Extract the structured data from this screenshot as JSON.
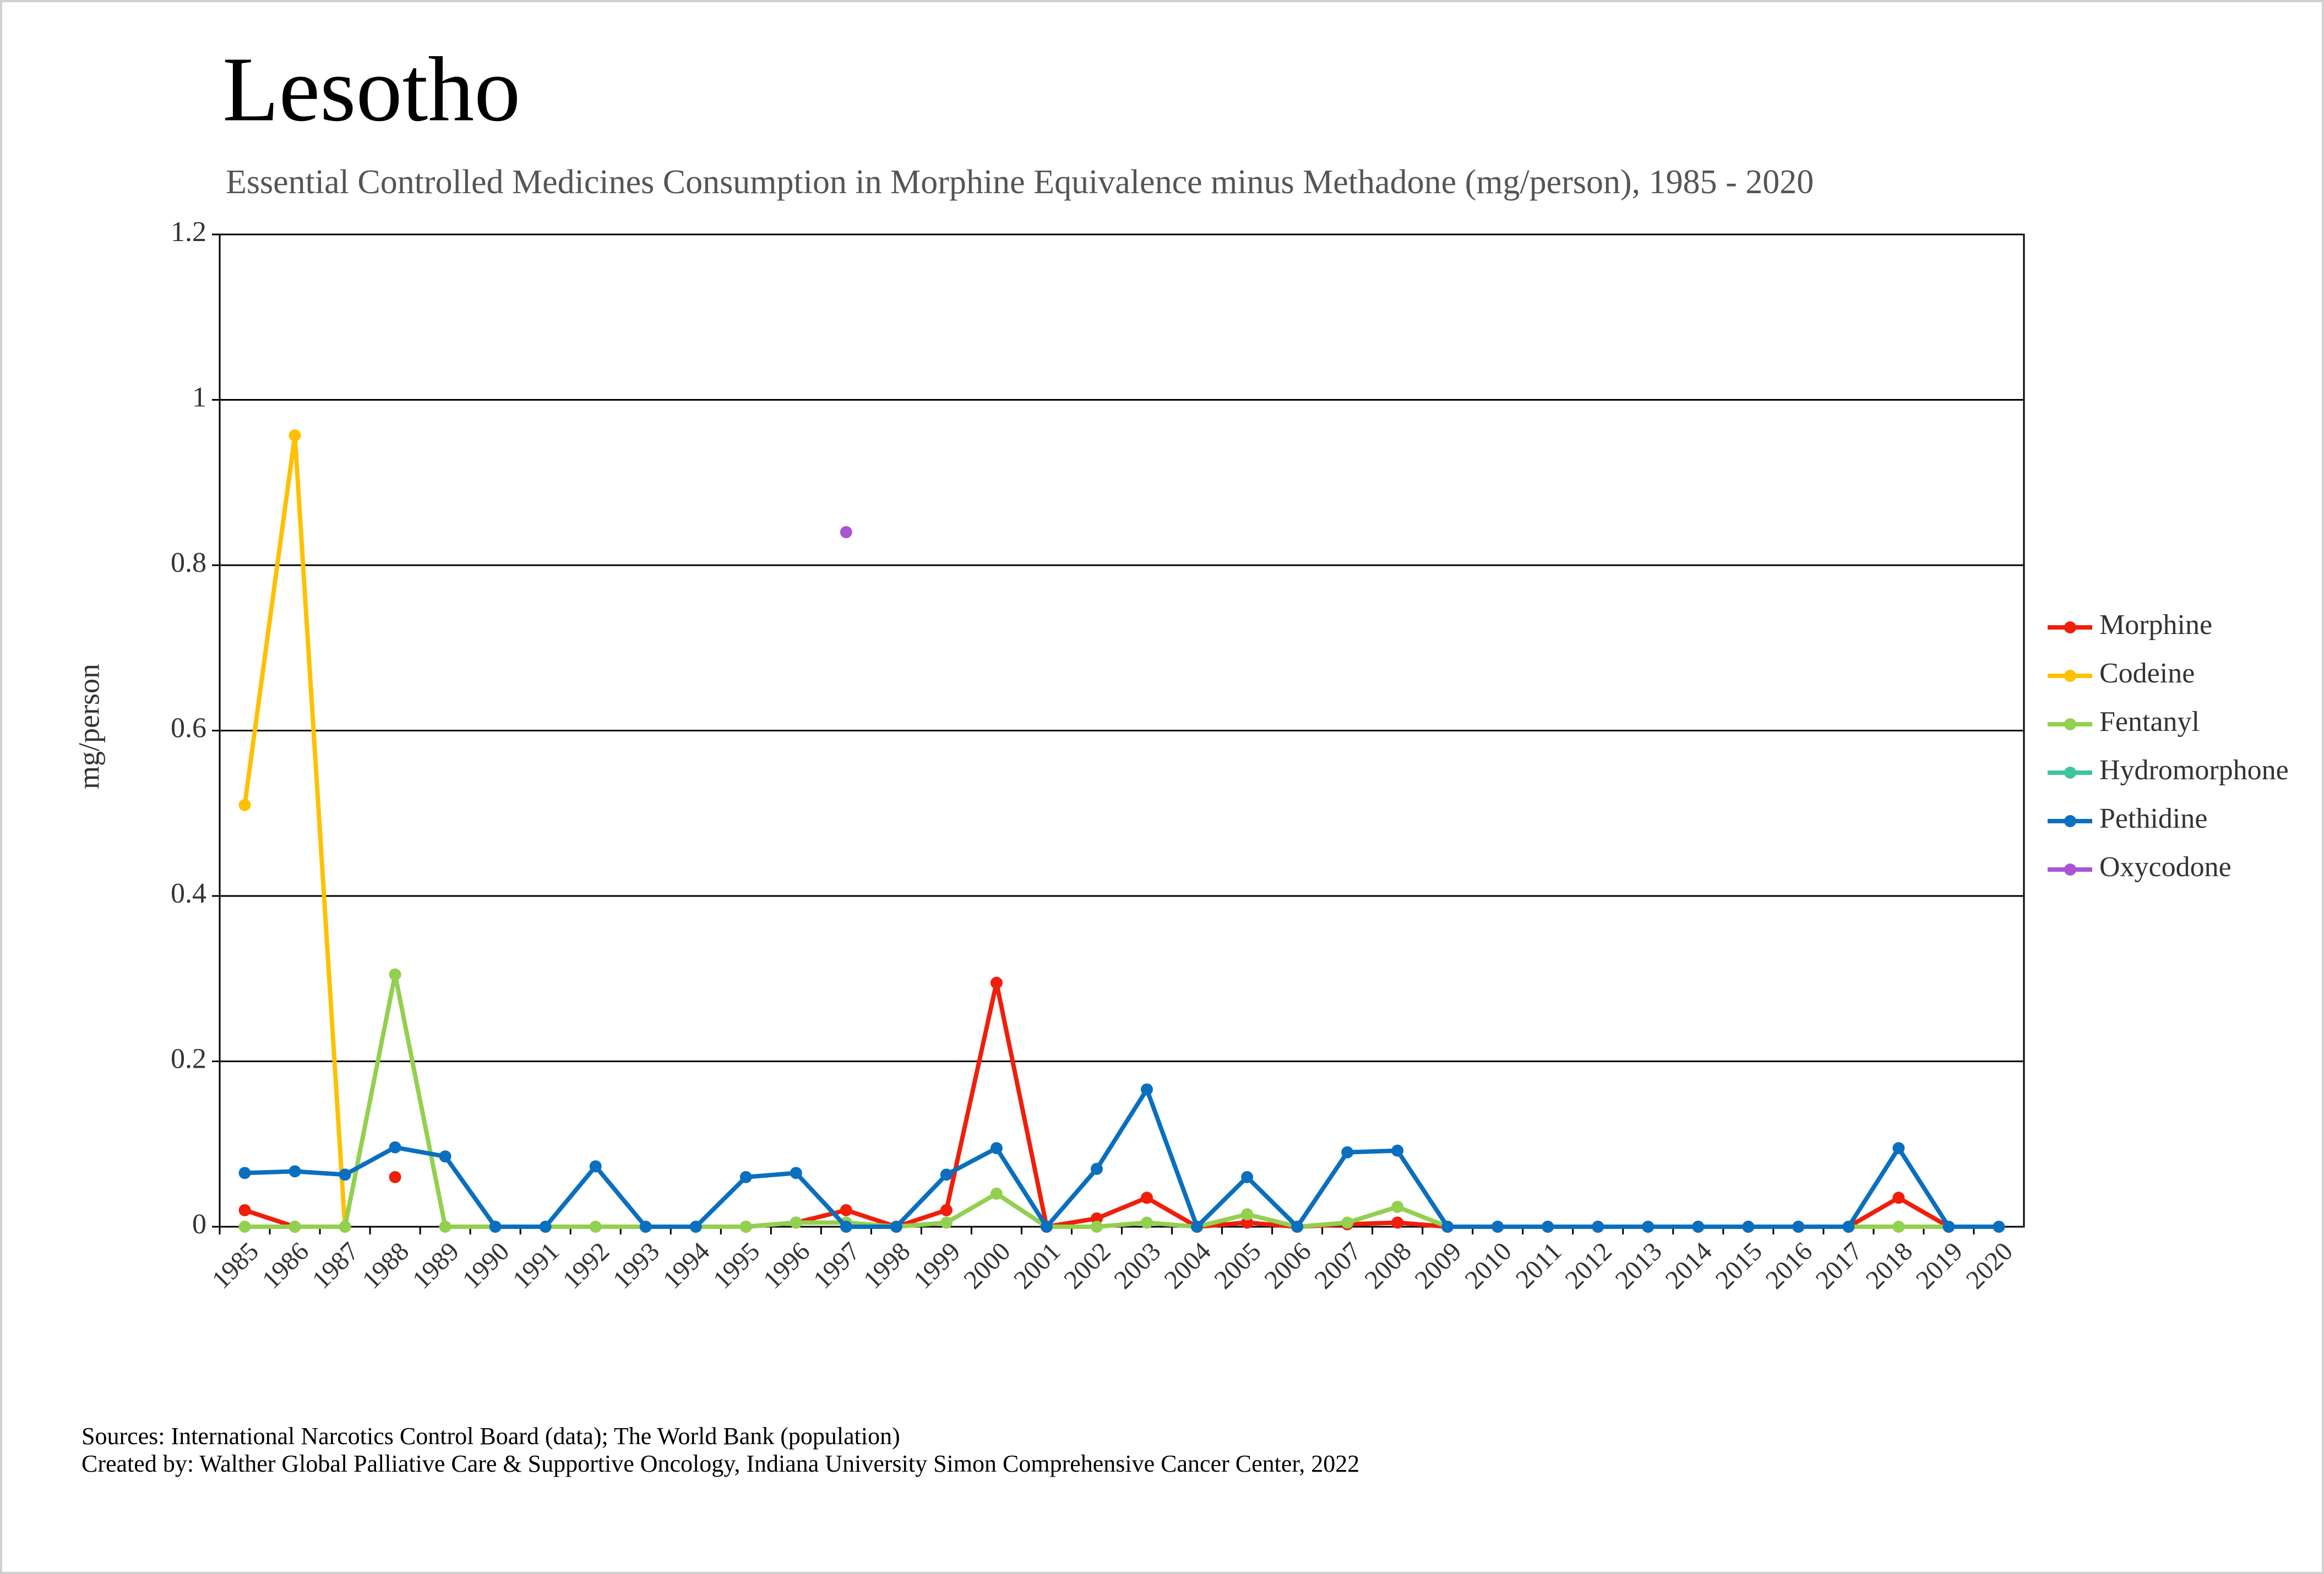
{
  "chart_data": {
    "type": "line",
    "title": "Lesotho",
    "subtitle": "Essential Controlled Medicines Consumption in Morphine Equivalence minus Methadone (mg/person), 1985 - 2020",
    "y_label": "mg/person",
    "categories": [
      "1985",
      "1986",
      "1987",
      "1988",
      "1989",
      "1990",
      "1991",
      "1992",
      "1993",
      "1994",
      "1995",
      "1996",
      "1997",
      "1998",
      "1999",
      "2000",
      "2001",
      "2002",
      "2003",
      "2004",
      "2005",
      "2006",
      "2007",
      "2008",
      "2009",
      "2010",
      "2011",
      "2012",
      "2013",
      "2014",
      "2015",
      "2016",
      "2017",
      "2018",
      "2019",
      "2020"
    ],
    "series": [
      {
        "name": "Morphine",
        "color": "#f01e0a",
        "values": [
          0.02,
          0,
          null,
          0.06,
          null,
          null,
          null,
          null,
          null,
          null,
          0,
          0.005,
          0.02,
          0,
          0.02,
          0.295,
          0,
          0.01,
          0.035,
          0,
          0.005,
          0,
          0.003,
          0.005,
          0,
          0,
          0,
          0,
          0,
          0,
          0,
          0,
          0,
          0.035,
          0,
          null
        ]
      },
      {
        "name": "Codeine",
        "color": "#ffc000",
        "values": [
          0.51,
          0.957,
          0,
          null,
          null,
          null,
          null,
          null,
          null,
          null,
          null,
          null,
          null,
          null,
          null,
          null,
          null,
          null,
          null,
          null,
          null,
          null,
          null,
          null,
          null,
          null,
          null,
          null,
          null,
          null,
          null,
          null,
          null,
          null,
          null,
          null
        ]
      },
      {
        "name": "Fentanyl",
        "color": "#92d050",
        "values": [
          0,
          0,
          0,
          0.305,
          0,
          0,
          0,
          0,
          0,
          0,
          0,
          0.005,
          0.005,
          0,
          0.005,
          0.04,
          0,
          0,
          0.005,
          0,
          0.015,
          0,
          0.005,
          0.024,
          0,
          null,
          null,
          null,
          null,
          null,
          null,
          null,
          0,
          0,
          0,
          null
        ]
      },
      {
        "name": "Hydromorphone",
        "color": "#3cc5a0",
        "values": [
          null,
          null,
          null,
          null,
          null,
          null,
          null,
          null,
          null,
          null,
          null,
          null,
          null,
          null,
          null,
          null,
          null,
          null,
          null,
          null,
          null,
          null,
          null,
          null,
          null,
          null,
          null,
          null,
          null,
          null,
          null,
          null,
          null,
          null,
          null,
          null
        ]
      },
      {
        "name": "Pethidine",
        "color": "#0a6fbf",
        "values": [
          0.065,
          0.067,
          0.063,
          0.096,
          0.085,
          0,
          0,
          0.073,
          0,
          0,
          0.06,
          0.065,
          0,
          0,
          0.063,
          0.095,
          0,
          0.07,
          0.166,
          0,
          0.06,
          0,
          0.09,
          0.092,
          0,
          0,
          0,
          0,
          0,
          0,
          0,
          0,
          0,
          0.095,
          0,
          0
        ]
      },
      {
        "name": "Oxycodone",
        "color": "#a855d6",
        "values": [
          null,
          null,
          null,
          null,
          null,
          null,
          null,
          null,
          null,
          null,
          null,
          null,
          0.84,
          null,
          null,
          null,
          null,
          null,
          null,
          null,
          null,
          null,
          null,
          null,
          null,
          null,
          null,
          null,
          null,
          null,
          null,
          null,
          null,
          null,
          null,
          null
        ]
      }
    ],
    "ylim": [
      0,
      1.2
    ],
    "yticks": [
      0,
      0.2,
      0.4,
      0.6,
      0.8,
      1,
      1.2
    ],
    "grid": true,
    "legend": "right",
    "sources": [
      "Sources: International Narcotics Control Board (data); The World Bank (population)",
      "Created by: Walther Global Palliative Care & Supportive Oncology, Indiana University Simon Comprehensive Cancer Center, 2022"
    ]
  }
}
